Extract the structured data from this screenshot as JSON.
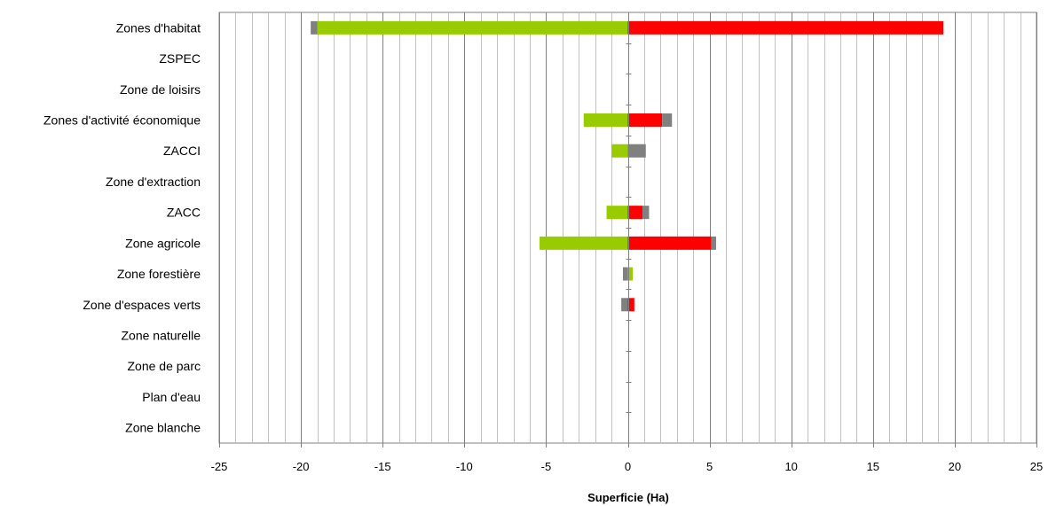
{
  "chart_data": {
    "type": "bar",
    "orientation": "horizontal",
    "stacked": true,
    "xlabel": "Superficie (Ha)",
    "xlim": [
      -25,
      25
    ],
    "major_ticks": [
      -25,
      -20,
      -15,
      -10,
      -5,
      0,
      5,
      10,
      15,
      20,
      25
    ],
    "tick_labels": [
      "-25",
      "-20",
      "-15",
      "-10",
      "-5",
      "0",
      "5",
      "10",
      "15",
      "20",
      "25"
    ],
    "minor_tick_step": 1,
    "grid": true,
    "legend": "none",
    "categories": [
      "Zones d'habitat",
      "ZSPEC",
      "Zone de loisirs",
      "Zones d'activité économique",
      "ZACCI",
      "Zone d'extraction",
      "ZACC",
      "Zone agricole",
      "Zone forestière",
      "Zone d'espaces verts",
      "Zone naturelle",
      "Zone de parc",
      "Plan d'eau",
      "Zone blanche"
    ],
    "series": [
      {
        "color": "#99cc00",
        "values": [
          -19.0,
          0,
          0,
          -2.7,
          -1.0,
          0,
          -1.3,
          -5.4,
          0,
          0,
          0,
          0,
          0,
          0
        ]
      },
      {
        "color": "#808080",
        "values": [
          -0.4,
          0,
          0,
          0,
          0,
          0,
          0,
          0,
          -0.3,
          -0.4,
          0,
          0,
          0,
          0
        ]
      },
      {
        "color": "#ff0000",
        "values": [
          19.3,
          0,
          0,
          2.1,
          0,
          0,
          0.9,
          5.1,
          0,
          0.4,
          0,
          0,
          0,
          0
        ]
      },
      {
        "color": "#808080",
        "values": [
          0,
          0,
          0,
          0.6,
          1.1,
          0,
          0.4,
          0.3,
          0,
          0,
          0,
          0,
          0,
          0
        ]
      },
      {
        "color": "#99cc00",
        "values": [
          0,
          0,
          0,
          0,
          0,
          0,
          0,
          0,
          0.3,
          0,
          0,
          0,
          0,
          0
        ]
      }
    ]
  }
}
